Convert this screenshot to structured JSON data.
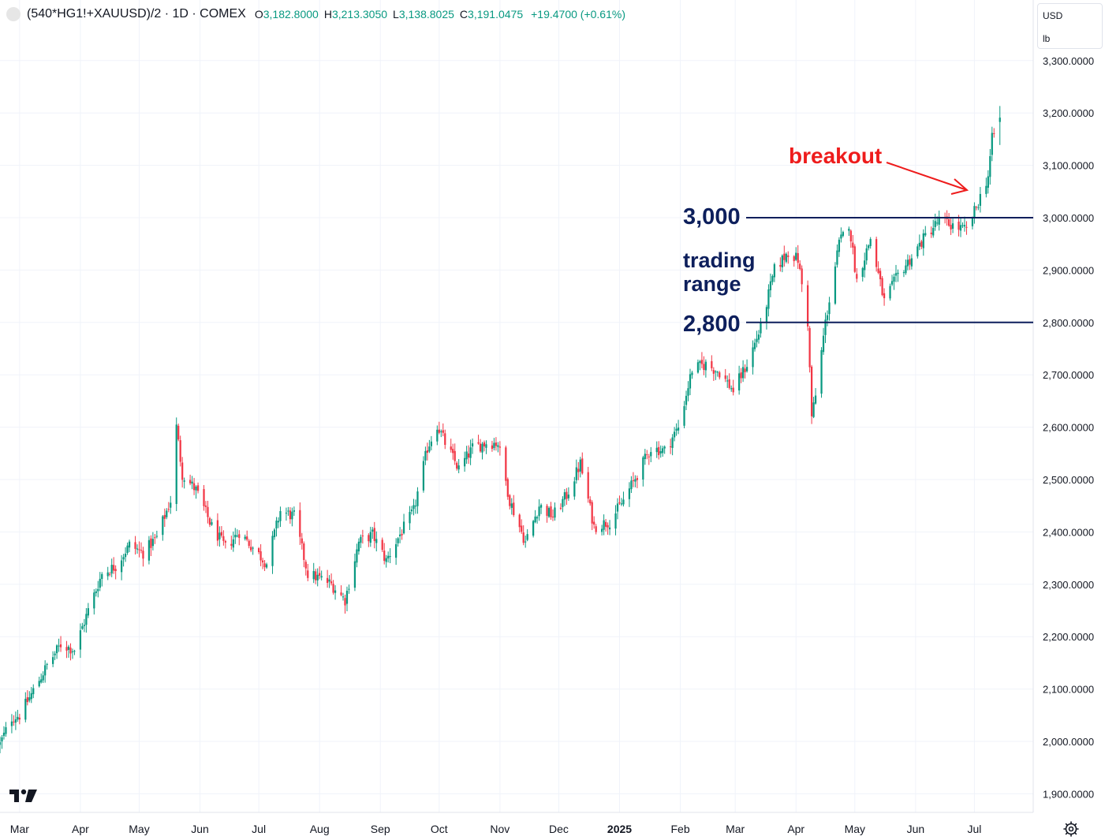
{
  "legend": {
    "symbol": "(540*HG1!+XAUUSD)/2 · 1D · COMEX",
    "o_label": "O",
    "o_value": "3,182.8000",
    "h_label": "H",
    "h_value": "3,213.3050",
    "l_label": "L",
    "l_value": "3,138.8025",
    "c_label": "C",
    "c_value": "3,191.0475",
    "change": "+19.4700 (+0.61%)"
  },
  "unit_box": {
    "currency": "USD",
    "unit": "lb"
  },
  "annotations": {
    "level_high": "3,000",
    "level_low": "2,800",
    "range_line1": "trading",
    "range_line2": "range",
    "breakout": "breakout"
  },
  "colors": {
    "up": "#089981",
    "down": "#f23645",
    "level_line": "#0d1f5c",
    "arrow": "#ee1c1c",
    "grid": "#f0f3fa"
  },
  "icons": {
    "settings": "gear-icon",
    "logo": "tradingview-logo-icon"
  },
  "chart_data": {
    "type": "candlestick",
    "title": "(540*HG1!+XAUUSD)/2 · 1D · COMEX",
    "ylim": [
      1860,
      3340
    ],
    "xlim": [
      "2024-02-20",
      "2025-07-31"
    ],
    "grid": true,
    "y_ticks": [
      "1,900.0000",
      "2,000.0000",
      "2,100.0000",
      "2,200.0000",
      "2,300.0000",
      "2,400.0000",
      "2,500.0000",
      "2,600.0000",
      "2,700.0000",
      "2,800.0000",
      "2,900.0000",
      "3,000.0000",
      "3,100.0000",
      "3,200.0000",
      "3,300.0000"
    ],
    "x_ticks": [
      {
        "label": "Mar",
        "date": "2024-03-01",
        "bold": false
      },
      {
        "label": "Apr",
        "date": "2024-04-01",
        "bold": false
      },
      {
        "label": "May",
        "date": "2024-05-01",
        "bold": false
      },
      {
        "label": "Jun",
        "date": "2024-06-01",
        "bold": false
      },
      {
        "label": "Jul",
        "date": "2024-07-01",
        "bold": false
      },
      {
        "label": "Aug",
        "date": "2024-08-01",
        "bold": false
      },
      {
        "label": "Sep",
        "date": "2024-09-01",
        "bold": false
      },
      {
        "label": "Oct",
        "date": "2024-10-01",
        "bold": false
      },
      {
        "label": "Nov",
        "date": "2024-11-01",
        "bold": false
      },
      {
        "label": "Dec",
        "date": "2024-12-01",
        "bold": false
      },
      {
        "label": "2025",
        "date": "2025-01-01",
        "bold": true
      },
      {
        "label": "Feb",
        "date": "2025-02-01",
        "bold": false
      },
      {
        "label": "Mar",
        "date": "2025-03-01",
        "bold": false
      },
      {
        "label": "Apr",
        "date": "2025-04-01",
        "bold": false
      },
      {
        "label": "May",
        "date": "2025-05-01",
        "bold": false
      },
      {
        "label": "Jun",
        "date": "2025-06-01",
        "bold": false
      },
      {
        "label": "Jul",
        "date": "2025-07-01",
        "bold": false
      }
    ],
    "horizontal_levels": [
      3000,
      2800
    ],
    "close_path": [
      [
        "2024-02-20",
        1995
      ],
      [
        "2024-02-26",
        2045
      ],
      [
        "2024-03-01",
        2050
      ],
      [
        "2024-03-07",
        2090
      ],
      [
        "2024-03-15",
        2145
      ],
      [
        "2024-03-22",
        2185
      ],
      [
        "2024-03-29",
        2175
      ],
      [
        "2024-04-05",
        2250
      ],
      [
        "2024-04-12",
        2320
      ],
      [
        "2024-04-19",
        2335
      ],
      [
        "2024-04-26",
        2375
      ],
      [
        "2024-05-03",
        2360
      ],
      [
        "2024-05-10",
        2390
      ],
      [
        "2024-05-17",
        2460
      ],
      [
        "2024-05-20",
        2600
      ],
      [
        "2024-05-23",
        2510
      ],
      [
        "2024-05-30",
        2480
      ],
      [
        "2024-06-07",
        2410
      ],
      [
        "2024-06-14",
        2370
      ],
      [
        "2024-06-21",
        2400
      ],
      [
        "2024-06-28",
        2370
      ],
      [
        "2024-07-05",
        2340
      ],
      [
        "2024-07-12",
        2440
      ],
      [
        "2024-07-19",
        2430
      ],
      [
        "2024-07-26",
        2320
      ],
      [
        "2024-08-02",
        2310
      ],
      [
        "2024-08-07",
        2300
      ],
      [
        "2024-08-14",
        2270
      ],
      [
        "2024-08-21",
        2380
      ],
      [
        "2024-08-28",
        2395
      ],
      [
        "2024-09-04",
        2345
      ],
      [
        "2024-09-11",
        2395
      ],
      [
        "2024-09-18",
        2440
      ],
      [
        "2024-09-25",
        2560
      ],
      [
        "2024-09-30",
        2605
      ],
      [
        "2024-10-04",
        2570
      ],
      [
        "2024-10-11",
        2520
      ],
      [
        "2024-10-18",
        2560
      ],
      [
        "2024-10-25",
        2570
      ],
      [
        "2024-10-31",
        2570
      ],
      [
        "2024-11-06",
        2460
      ],
      [
        "2024-11-14",
        2380
      ],
      [
        "2024-11-21",
        2450
      ],
      [
        "2024-11-28",
        2430
      ],
      [
        "2024-12-05",
        2470
      ],
      [
        "2024-12-12",
        2530
      ],
      [
        "2024-12-19",
        2410
      ],
      [
        "2024-12-27",
        2420
      ],
      [
        "2025-01-03",
        2460
      ],
      [
        "2025-01-10",
        2510
      ],
      [
        "2025-01-17",
        2560
      ],
      [
        "2025-01-24",
        2555
      ],
      [
        "2025-01-31",
        2600
      ],
      [
        "2025-02-07",
        2710
      ],
      [
        "2025-02-14",
        2720
      ],
      [
        "2025-02-21",
        2705
      ],
      [
        "2025-02-28",
        2670
      ],
      [
        "2025-03-07",
        2720
      ],
      [
        "2025-03-14",
        2790
      ],
      [
        "2025-03-21",
        2900
      ],
      [
        "2025-03-28",
        2935
      ],
      [
        "2025-04-02",
        2920
      ],
      [
        "2025-04-07",
        2800
      ],
      [
        "2025-04-09",
        2620
      ],
      [
        "2025-04-11",
        2660
      ],
      [
        "2025-04-16",
        2800
      ],
      [
        "2025-04-23",
        2950
      ],
      [
        "2025-04-28",
        2990
      ],
      [
        "2025-05-02",
        2880
      ],
      [
        "2025-05-09",
        2960
      ],
      [
        "2025-05-16",
        2840
      ],
      [
        "2025-05-23",
        2890
      ],
      [
        "2025-05-30",
        2925
      ],
      [
        "2025-06-06",
        2965
      ],
      [
        "2025-06-13",
        2995
      ],
      [
        "2025-06-20",
        2985
      ],
      [
        "2025-06-27",
        2975
      ],
      [
        "2025-07-03",
        3030
      ],
      [
        "2025-07-08",
        3080
      ],
      [
        "2025-07-10",
        3150
      ],
      [
        "2025-07-14",
        3191
      ]
    ],
    "last_bar": {
      "open": 3182.8,
      "high": 3213.305,
      "low": 3138.8025,
      "close": 3191.0475,
      "change": 19.47,
      "change_pct": 0.61
    }
  }
}
